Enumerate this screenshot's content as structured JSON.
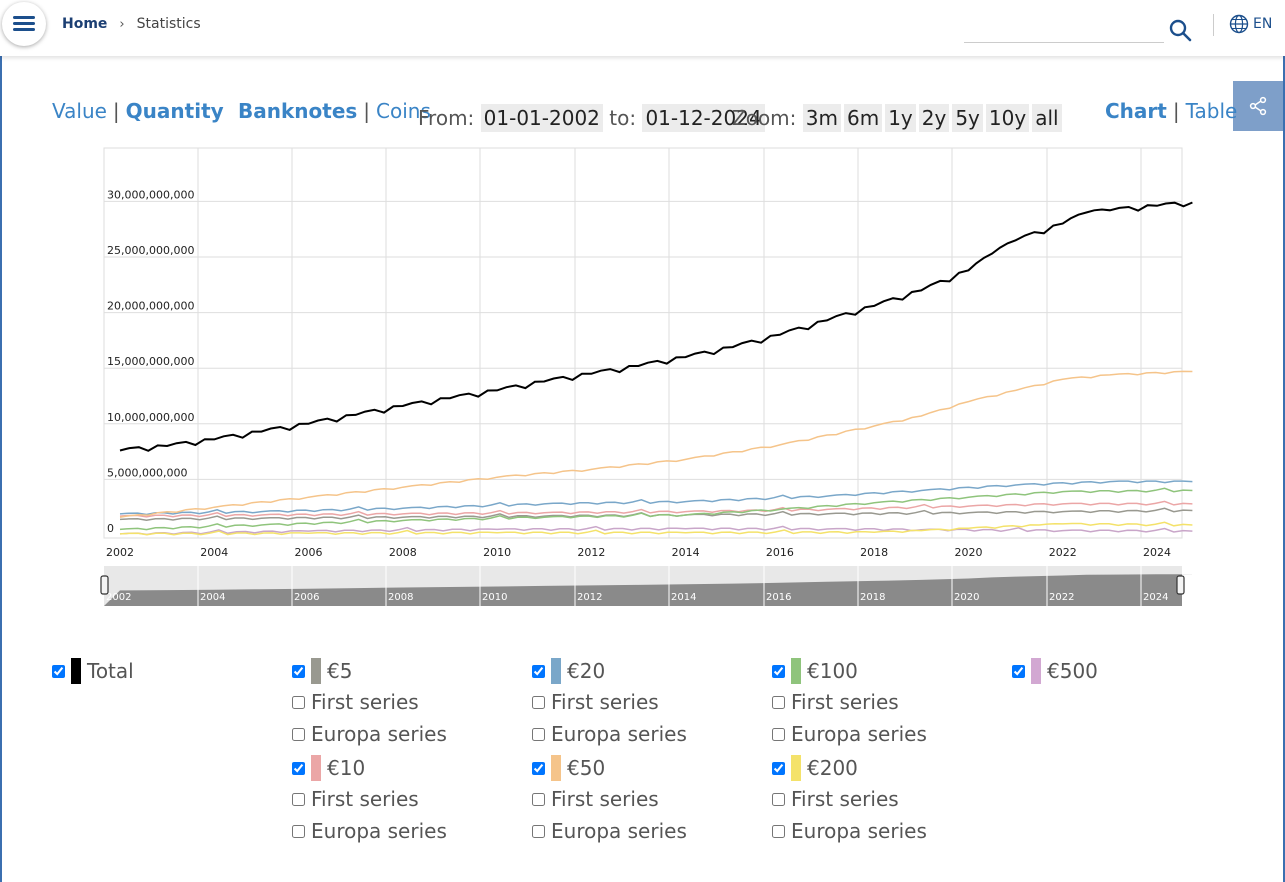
{
  "header": {
    "breadcrumb_home": "Home",
    "breadcrumb_sep": "›",
    "breadcrumb_current": "Statistics",
    "language": "EN",
    "search_value": "",
    "accent_color": "#1c4f8c"
  },
  "controls": {
    "value_label": "Value",
    "quantity_label": "Quantity",
    "banknotes_label": "Banknotes",
    "coins_label": "Coins",
    "from_label": "From:",
    "from_date": "01-01-2002",
    "to_label": "to:",
    "to_date": "01-12-2024",
    "zoom_label": "Zoom:",
    "zoom_options": [
      "3m",
      "6m",
      "1y",
      "2y",
      "5y",
      "10y",
      "all"
    ],
    "chart_label": "Chart",
    "table_label": "Table",
    "separator": "|"
  },
  "chart_data": {
    "type": "line",
    "x_ticks": [
      "2002",
      "2004",
      "2006",
      "2008",
      "2010",
      "2012",
      "2014",
      "2016",
      "2018",
      "2020",
      "2022",
      "2024"
    ],
    "y_ticks": [
      "0",
      "5,000,000,000",
      "10,000,000,000",
      "15,000,000,000",
      "20,000,000,000",
      "25,000,000,000",
      "30,000,000,000"
    ],
    "ylim": [
      0,
      35000000000
    ],
    "xlim": [
      2002,
      2025
    ],
    "grid": true,
    "series": [
      {
        "name": "Total",
        "color": "#000000",
        "width": 2,
        "points": [
          [
            2002,
            7600000000
          ],
          [
            2003,
            8000000000
          ],
          [
            2004,
            8600000000
          ],
          [
            2005,
            9300000000
          ],
          [
            2006,
            10000000000
          ],
          [
            2007,
            10800000000
          ],
          [
            2008,
            11600000000
          ],
          [
            2009,
            12300000000
          ],
          [
            2010,
            13000000000
          ],
          [
            2011,
            13800000000
          ],
          [
            2012,
            14500000000
          ],
          [
            2013,
            15200000000
          ],
          [
            2014,
            16000000000
          ],
          [
            2015,
            16900000000
          ],
          [
            2016,
            18000000000
          ],
          [
            2017,
            19300000000
          ],
          [
            2018,
            20600000000
          ],
          [
            2019,
            22000000000
          ],
          [
            2020,
            23800000000
          ],
          [
            2020.5,
            25300000000
          ],
          [
            2021,
            26500000000
          ],
          [
            2022,
            28000000000
          ],
          [
            2022.5,
            29000000000
          ],
          [
            2023,
            29200000000
          ],
          [
            2024,
            29600000000
          ],
          [
            2024.75,
            29900000000
          ]
        ]
      },
      {
        "name": "€50",
        "color": "#f5c48a",
        "width": 1.5,
        "points": [
          [
            2002,
            1600000000
          ],
          [
            2004,
            2500000000
          ],
          [
            2006,
            3400000000
          ],
          [
            2008,
            4300000000
          ],
          [
            2010,
            5200000000
          ],
          [
            2012,
            5900000000
          ],
          [
            2014,
            6800000000
          ],
          [
            2016,
            8100000000
          ],
          [
            2018,
            9800000000
          ],
          [
            2019,
            10700000000
          ],
          [
            2020,
            12000000000
          ],
          [
            2021,
            13000000000
          ],
          [
            2022,
            14000000000
          ],
          [
            2023,
            14400000000
          ],
          [
            2024.75,
            14700000000
          ]
        ]
      },
      {
        "name": "€20",
        "color": "#7aa7c9",
        "width": 1.5,
        "points": [
          [
            2002,
            1900000000
          ],
          [
            2005,
            2100000000
          ],
          [
            2008,
            2400000000
          ],
          [
            2011,
            2800000000
          ],
          [
            2014,
            3000000000
          ],
          [
            2017,
            3500000000
          ],
          [
            2019,
            4000000000
          ],
          [
            2021,
            4500000000
          ],
          [
            2023,
            4800000000
          ],
          [
            2024.75,
            4800000000
          ]
        ]
      },
      {
        "name": "€100",
        "color": "#8fc47c",
        "width": 1.5,
        "points": [
          [
            2002,
            500000000
          ],
          [
            2005,
            900000000
          ],
          [
            2008,
            1300000000
          ],
          [
            2011,
            1600000000
          ],
          [
            2014,
            1800000000
          ],
          [
            2016,
            2300000000
          ],
          [
            2018,
            2900000000
          ],
          [
            2020,
            3400000000
          ],
          [
            2022,
            3900000000
          ],
          [
            2024.75,
            4000000000
          ]
        ]
      },
      {
        "name": "€10",
        "color": "#eba6a6",
        "width": 1.5,
        "points": [
          [
            2002,
            1700000000
          ],
          [
            2005,
            1800000000
          ],
          [
            2008,
            1900000000
          ],
          [
            2011,
            2000000000
          ],
          [
            2014,
            2100000000
          ],
          [
            2017,
            2300000000
          ],
          [
            2020,
            2600000000
          ],
          [
            2022,
            2800000000
          ],
          [
            2024.75,
            2800000000
          ]
        ]
      },
      {
        "name": "€5",
        "color": "#999990",
        "width": 1.5,
        "points": [
          [
            2002,
            1400000000
          ],
          [
            2005,
            1500000000
          ],
          [
            2008,
            1600000000
          ],
          [
            2011,
            1700000000
          ],
          [
            2014,
            1800000000
          ],
          [
            2017,
            1900000000
          ],
          [
            2020,
            2000000000
          ],
          [
            2022,
            2100000000
          ],
          [
            2024.75,
            2200000000
          ]
        ]
      },
      {
        "name": "€200",
        "color": "#f4e26a",
        "width": 1.5,
        "points": [
          [
            2002,
            100000000
          ],
          [
            2006,
            150000000
          ],
          [
            2010,
            200000000
          ],
          [
            2014,
            200000000
          ],
          [
            2018,
            250000000
          ],
          [
            2019,
            400000000
          ],
          [
            2020,
            600000000
          ],
          [
            2021.5,
            900000000
          ],
          [
            2022,
            1000000000
          ],
          [
            2024.75,
            900000000
          ]
        ]
      },
      {
        "name": "€500",
        "color": "#c9a6c9",
        "width": 1.5,
        "points": [
          [
            2002,
            100000000
          ],
          [
            2006,
            350000000
          ],
          [
            2010,
            500000000
          ],
          [
            2014,
            560000000
          ],
          [
            2017,
            540000000
          ],
          [
            2019,
            480000000
          ],
          [
            2022,
            400000000
          ],
          [
            2024.75,
            350000000
          ]
        ]
      }
    ]
  },
  "navigator": {
    "ticks": [
      "2002",
      "2004",
      "2006",
      "2008",
      "2010",
      "2012",
      "2014",
      "2016",
      "2018",
      "2020",
      "2022",
      "2024"
    ]
  },
  "legend": {
    "total": {
      "label": "Total",
      "color": "#000000",
      "checked": true
    },
    "groups": [
      {
        "label": "€5",
        "color": "#999990",
        "checked": true,
        "sub": [
          "First series",
          "Europa series"
        ]
      },
      {
        "label": "€20",
        "color": "#7aa7c9",
        "checked": true,
        "sub": [
          "First series",
          "Europa series"
        ]
      },
      {
        "label": "€100",
        "color": "#8fc47c",
        "checked": true,
        "sub": [
          "First series",
          "Europa series"
        ]
      },
      {
        "label": "€500",
        "color": "#d2a8d2",
        "checked": true,
        "sub": []
      },
      {
        "label": "€10",
        "color": "#eba6a6",
        "checked": true,
        "sub": [
          "First series",
          "Europa series"
        ]
      },
      {
        "label": "€50",
        "color": "#f5c48a",
        "checked": true,
        "sub": [
          "First series",
          "Europa series"
        ]
      },
      {
        "label": "€200",
        "color": "#f4e26a",
        "checked": true,
        "sub": [
          "First series",
          "Europa series"
        ]
      }
    ]
  }
}
